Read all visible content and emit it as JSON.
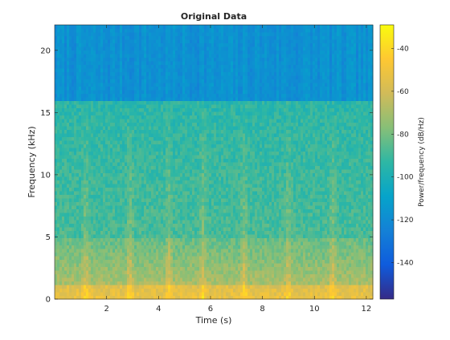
{
  "chart_data": {
    "type": "heatmap",
    "title": "Original Data",
    "xlabel": "Time (s)",
    "ylabel": "Frequency (kHz)",
    "xlim": [
      0.0,
      12.25
    ],
    "ylim": [
      0,
      22.05
    ],
    "xticks": [
      2,
      4,
      6,
      8,
      10,
      12
    ],
    "xtick_labels": [
      "2",
      "4",
      "6",
      "8",
      "10",
      "12"
    ],
    "yticks": [
      0,
      5,
      10,
      15,
      20
    ],
    "ytick_labels": [
      "0",
      "5",
      "10",
      "15",
      "20"
    ],
    "colorbar": {
      "label": "Power/frequency (dB/Hz)",
      "range": [
        -157,
        -29
      ],
      "ticks": [
        -140,
        -120,
        -100,
        -80,
        -60,
        -40
      ],
      "tick_labels": [
        "-140",
        "-120",
        "-100",
        "-80",
        "-60",
        "-40"
      ],
      "colormap": "parula",
      "colors": [
        "#352a87",
        "#0f5cdd",
        "#1481d6",
        "#06a4ca",
        "#2eb7a4",
        "#87bf77",
        "#d1bb59",
        "#fec832",
        "#f9fb0e"
      ]
    },
    "description_values": {
      "cutoff_frequency_khz": 16.0,
      "level_above_cutoff_db": -118,
      "level_mid_band_db": -92,
      "level_low_band_db": -70,
      "level_lowest_band_db": -52
    },
    "bursts_s": [
      1.2,
      2.9,
      4.4,
      5.7,
      7.3,
      9.0,
      10.7
    ],
    "grid": false
  }
}
